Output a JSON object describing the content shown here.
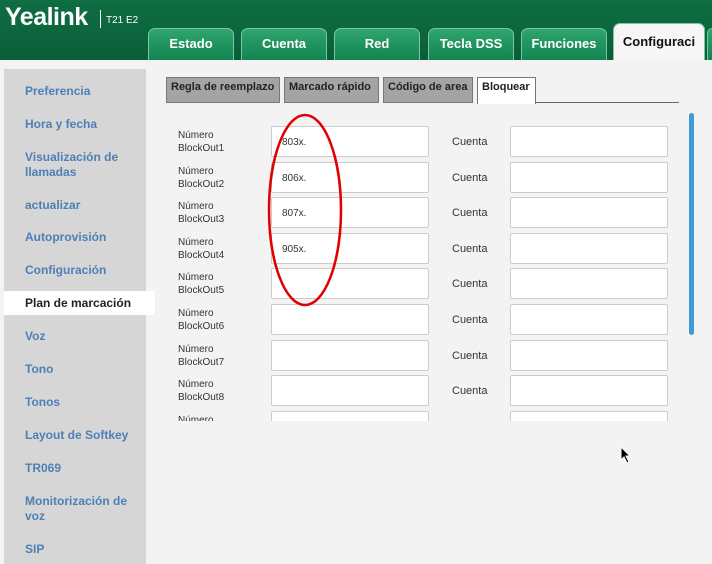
{
  "header": {
    "logo": "Yealink",
    "model": "T21 E2",
    "tabs": [
      "Estado",
      "Cuenta",
      "Red",
      "Tecla DSS",
      "Funciones",
      "Configuraci"
    ],
    "active_tab": "Configuraci"
  },
  "sidebar": {
    "items": [
      "Preferencia",
      "Hora y fecha",
      "Visualización de llamadas",
      "actualizar",
      "Autoprovisión",
      "Configuración",
      "Plan de marcación",
      "Voz",
      "Tono",
      "Tonos",
      "Layout de Softkey",
      "TR069",
      "Monitorización de voz",
      "SIP"
    ],
    "active": "Plan de marcación"
  },
  "subtabs": {
    "items": [
      "Regla de reemplazo",
      "Marcado rápido",
      "Código de area",
      "Bloquear"
    ],
    "active": "Bloquear"
  },
  "form": {
    "account_label": "Cuenta",
    "rows": [
      {
        "label": "Número BlockOut1",
        "value": "803x."
      },
      {
        "label": "Número BlockOut2",
        "value": "806x."
      },
      {
        "label": "Número BlockOut3",
        "value": "807x."
      },
      {
        "label": "Número BlockOut4",
        "value": "905x."
      },
      {
        "label": "Número BlockOut5",
        "value": ""
      },
      {
        "label": "Número BlockOut6",
        "value": ""
      },
      {
        "label": "Número BlockOut7",
        "value": ""
      },
      {
        "label": "Número BlockOut8",
        "value": ""
      },
      {
        "label": "Número",
        "value": ""
      }
    ]
  },
  "annotation_color": "#e00000"
}
